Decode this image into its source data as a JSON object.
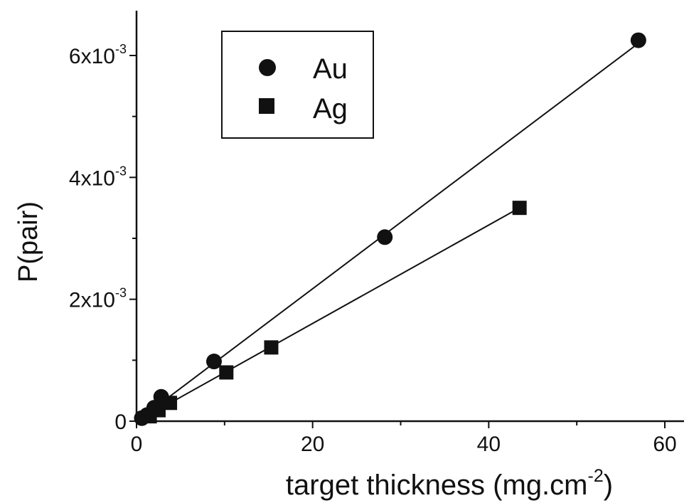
{
  "chart_data": {
    "type": "scatter",
    "xlabel": {
      "main": "target thickness (mg.cm",
      "sup": "-2",
      "tail": ")"
    },
    "ylabel": "P(pair)",
    "xlim": [
      0,
      62
    ],
    "ylim": [
      0,
      0.0068
    ],
    "x_ticks": [
      {
        "value": 0,
        "label": "0"
      },
      {
        "value": 20,
        "label": "20"
      },
      {
        "value": 40,
        "label": "40"
      },
      {
        "value": 60,
        "label": "60"
      }
    ],
    "y_ticks": [
      {
        "value": 0,
        "label": "0",
        "sup": ""
      },
      {
        "value": 0.002,
        "label": "2x10",
        "sup": "-3"
      },
      {
        "value": 0.004,
        "label": "4x10",
        "sup": "-3"
      },
      {
        "value": 0.006,
        "label": "6x10",
        "sup": "-3"
      }
    ],
    "legend_position": "top-left",
    "colors": {
      "series": "#111111",
      "line": "#111111",
      "axis": "#111111"
    },
    "series": [
      {
        "name": "Au",
        "marker": "circle",
        "fit_line": [
          [
            0.5,
            5e-05
          ],
          [
            57,
            0.0062
          ]
        ],
        "points": [
          {
            "x": 0.6,
            "y": 5e-05
          },
          {
            "x": 1.2,
            "y": 0.0001
          },
          {
            "x": 2.0,
            "y": 0.00022
          },
          {
            "x": 2.8,
            "y": 0.0004
          },
          {
            "x": 8.8,
            "y": 0.00098
          },
          {
            "x": 28.2,
            "y": 0.00302
          },
          {
            "x": 57.0,
            "y": 0.00625
          }
        ]
      },
      {
        "name": "Ag",
        "marker": "square",
        "fit_line": [
          [
            0.5,
            3e-05
          ],
          [
            43.5,
            0.0035
          ]
        ],
        "points": [
          {
            "x": 1.5,
            "y": 8e-05
          },
          {
            "x": 2.5,
            "y": 0.00018
          },
          {
            "x": 3.8,
            "y": 0.0003
          },
          {
            "x": 10.2,
            "y": 0.0008
          },
          {
            "x": 15.3,
            "y": 0.00121
          },
          {
            "x": 43.5,
            "y": 0.0035
          }
        ]
      }
    ]
  }
}
